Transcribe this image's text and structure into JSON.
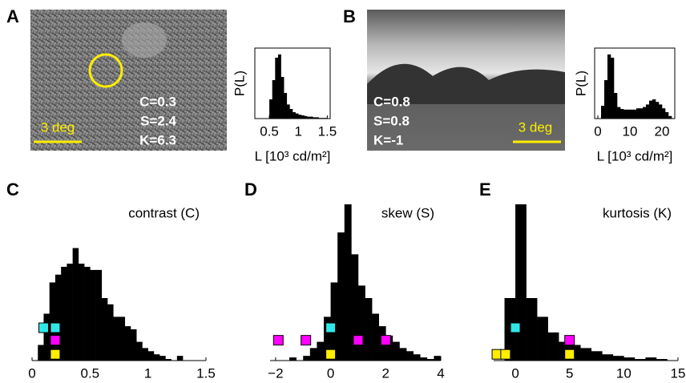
{
  "chart_data": [
    {
      "type": "histogram",
      "panel": "A",
      "ylabel": "P(L)",
      "xlabel": "L [10³ cd/m²]",
      "image_labels": [
        "C=0.3",
        "S=2.4",
        "K=6.3"
      ],
      "scale_label": "3 deg",
      "bins": [
        0.5,
        0.55,
        0.6,
        0.65,
        0.7,
        0.75,
        0.8,
        0.85,
        0.9,
        0.95,
        1.0,
        1.05,
        1.1,
        1.15,
        1.2,
        1.25,
        1.3,
        1.35,
        1.4,
        1.45,
        1.5
      ],
      "values": [
        30,
        60,
        95,
        100,
        65,
        40,
        22,
        15,
        10,
        8,
        6,
        5,
        4,
        3,
        3,
        2,
        2,
        1,
        1,
        1
      ],
      "color": "#000000",
      "xlim": [
        0.25,
        1.55
      ],
      "ylim": [
        0,
        110
      ],
      "xticks": [
        0.5,
        1,
        1.5
      ]
    },
    {
      "type": "histogram",
      "panel": "B",
      "ylabel": "P(L)",
      "xlabel": "L [10³ cd/m²]",
      "image_labels": [
        "C=0.8",
        "S=0.8",
        "K=-1"
      ],
      "scale_label": "3 deg",
      "bins": [
        1,
        2,
        3,
        4,
        5,
        6,
        7,
        8,
        9,
        10,
        11,
        12,
        13,
        14,
        15,
        16,
        17,
        18,
        19,
        20,
        21,
        22,
        23
      ],
      "values": [
        20,
        60,
        100,
        95,
        40,
        18,
        15,
        14,
        14,
        14,
        14,
        16,
        16,
        18,
        22,
        28,
        30,
        26,
        22,
        16,
        10,
        4
      ],
      "color": "#000000",
      "xlim": [
        -1,
        24
      ],
      "ylim": [
        0,
        110
      ],
      "xticks": [
        0,
        10,
        20
      ]
    },
    {
      "type": "histogram",
      "panel": "C",
      "title": "contrast (C)",
      "bins": [
        0.05,
        0.1,
        0.15,
        0.2,
        0.25,
        0.3,
        0.35,
        0.4,
        0.45,
        0.5,
        0.55,
        0.6,
        0.65,
        0.7,
        0.75,
        0.8,
        0.85,
        0.9,
        0.95,
        1.0,
        1.05,
        1.1,
        1.15,
        1.2,
        1.25,
        1.3,
        1.35
      ],
      "values": [
        10,
        30,
        50,
        55,
        60,
        62,
        72,
        62,
        60,
        58,
        58,
        40,
        36,
        28,
        28,
        22,
        20,
        12,
        8,
        6,
        4,
        3,
        1,
        0,
        3,
        0
      ],
      "color": "#000000",
      "xlim": [
        0,
        1.5
      ],
      "ylim": [
        0,
        100
      ],
      "xticks": [
        0,
        0.5,
        1,
        1.5
      ],
      "markers": [
        {
          "color": "#33e6e6",
          "x": [
            0.1,
            0.2
          ],
          "y": [
            21,
            21
          ]
        },
        {
          "color": "#ff00ff",
          "x": [
            0.2
          ],
          "y": [
            13
          ]
        },
        {
          "color": "#ffee00",
          "x": [
            0.2
          ],
          "y": [
            4
          ]
        }
      ]
    },
    {
      "type": "histogram",
      "panel": "D",
      "title": "skew (S)",
      "bins": [
        -2,
        -1.75,
        -1.5,
        -1.25,
        -1,
        -0.75,
        -0.5,
        -0.25,
        0,
        0.25,
        0.5,
        0.75,
        1,
        1.25,
        1.5,
        1.75,
        2,
        2.25,
        2.5,
        2.75,
        3,
        3.25,
        3.5,
        3.75,
        4
      ],
      "values": [
        0,
        0,
        2,
        0,
        3,
        8,
        12,
        28,
        50,
        82,
        100,
        68,
        48,
        40,
        30,
        22,
        16,
        12,
        8,
        6,
        4,
        2,
        1,
        3
      ],
      "color": "#000000",
      "xlim": [
        -2.2,
        4
      ],
      "ylim": [
        0,
        100
      ],
      "xticks": [
        {
          "value": -2,
          "label": "−2"
        },
        0,
        2,
        4
      ],
      "markers": [
        {
          "color": "#33e6e6",
          "x": [
            0
          ],
          "y": [
            21
          ]
        },
        {
          "color": "#ff00ff",
          "x": [
            -1.9,
            -0.9,
            1,
            2
          ],
          "y": [
            13,
            13,
            13,
            13
          ]
        },
        {
          "color": "#ffee00",
          "x": [
            0
          ],
          "y": [
            4
          ]
        }
      ]
    },
    {
      "type": "histogram",
      "panel": "E",
      "title": "kurtosis (K)",
      "bins": [
        -1,
        0,
        1,
        2,
        3,
        4,
        5,
        6,
        7,
        8,
        9,
        10,
        11,
        12,
        13,
        14
      ],
      "values": [
        40,
        100,
        40,
        28,
        18,
        12,
        10,
        8,
        6,
        4,
        3,
        2,
        1,
        2,
        1
      ],
      "color": "#000000",
      "xlim": [
        -2,
        15
      ],
      "ylim": [
        0,
        100
      ],
      "xticks": [
        0,
        5,
        10,
        15
      ],
      "markers": [
        {
          "color": "#33e6e6",
          "x": [
            0
          ],
          "y": [
            21
          ]
        },
        {
          "color": "#ff00ff",
          "x": [
            5
          ],
          "y": [
            13
          ]
        },
        {
          "color": "#ffee00",
          "x": [
            -1.7,
            -0.9,
            5
          ],
          "y": [
            4,
            4,
            4
          ]
        }
      ]
    }
  ]
}
